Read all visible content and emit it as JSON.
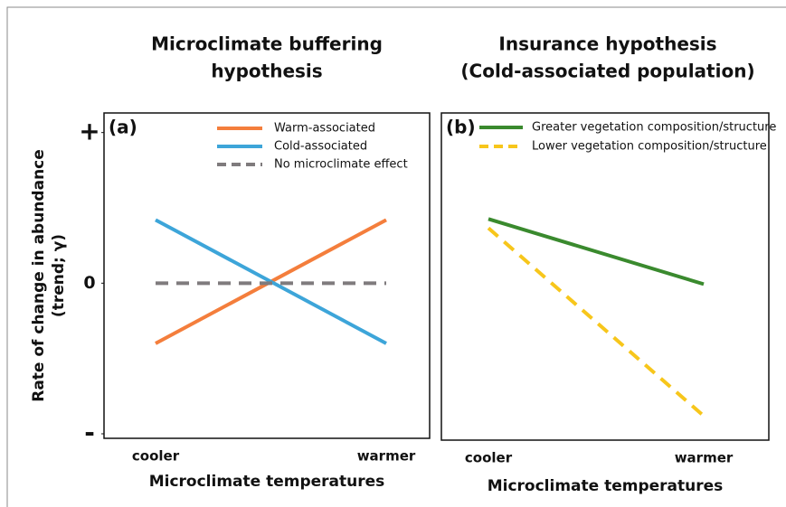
{
  "chart_data": [
    {
      "type": "line",
      "panel_label": "(a)",
      "title": [
        "Microclimate buffering",
        "hypothesis"
      ],
      "ylabel": [
        "Rate  of change in abundance",
        "(trend; γ)"
      ],
      "xlabel": "Microclimate temperatures",
      "categories": [
        "cooler",
        "warmer"
      ],
      "ylim": [
        -1.03,
        1.13
      ],
      "yticks": [
        {
          "value": 1,
          "label": "+"
        },
        0,
        {
          "value": -1,
          "label": "-"
        }
      ],
      "series": [
        {
          "name": "Warm-associated",
          "color": "#f47e3c",
          "dashed": false,
          "values": [
            -0.4,
            0.42
          ]
        },
        {
          "name": "Cold-associated",
          "color": "#3da5d9",
          "dashed": false,
          "values": [
            0.42,
            -0.4
          ]
        },
        {
          "name": "No microclimate effect",
          "color": "#7f7b7d",
          "dashed": true,
          "values": [
            0,
            0
          ]
        }
      ]
    },
    {
      "type": "line",
      "panel_label": "(b)",
      "title": [
        "Insurance hypothesis",
        "(Cold-associated population)"
      ],
      "xlabel": "Microclimate temperatures",
      "categories": [
        "cooler",
        "warmer"
      ],
      "ylim": [
        -1.03,
        1.13
      ],
      "series": [
        {
          "name": "Greater vegetation composition/structure",
          "color": "#3a8a2e",
          "dashed": false,
          "values": [
            0.43,
            0
          ]
        },
        {
          "name": "Lower vegetation composition/structure",
          "color": "#f7c61b",
          "dashed": true,
          "values": [
            0.37,
            -0.87
          ]
        }
      ]
    }
  ]
}
